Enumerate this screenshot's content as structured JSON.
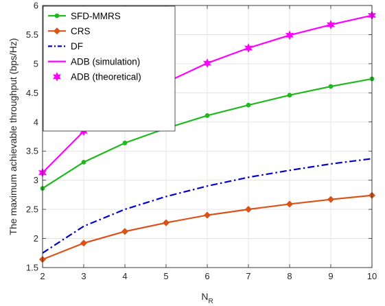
{
  "chart_data": {
    "type": "line",
    "x": [
      2,
      3,
      4,
      5,
      6,
      7,
      8,
      9,
      10
    ],
    "xlabel_main": "N",
    "xlabel_sub": "R",
    "ylabel": "The maximum achievable throughput (bps/Hz)",
    "xlim": [
      2,
      10
    ],
    "ylim": [
      1.5,
      6
    ],
    "xticks": [
      "2",
      "3",
      "4",
      "5",
      "6",
      "7",
      "8",
      "9",
      "10"
    ],
    "yticks": [
      "1.5",
      "2",
      "2.5",
      "3",
      "3.5",
      "4",
      "4.5",
      "5",
      "5.5",
      "6"
    ],
    "grid": true,
    "legend_position": "top-left",
    "series": [
      {
        "name": "SFD-MMRS",
        "color": "#1fb81f",
        "line": "solid",
        "marker": "circle",
        "values": [
          2.86,
          3.31,
          3.64,
          3.89,
          4.11,
          4.29,
          4.46,
          4.61,
          4.74
        ]
      },
      {
        "name": "CRS",
        "color": "#d95319",
        "line": "solid",
        "marker": "diamond",
        "values": [
          1.64,
          1.92,
          2.12,
          2.27,
          2.4,
          2.5,
          2.59,
          2.67,
          2.74
        ]
      },
      {
        "name": "DF",
        "color": "#0000cc",
        "line": "dashdot",
        "marker": "none",
        "values": [
          1.75,
          2.21,
          2.5,
          2.72,
          2.9,
          3.05,
          3.17,
          3.28,
          3.37
        ]
      },
      {
        "name": "ADB (simulation)",
        "color": "#ff00ff",
        "line": "solid",
        "marker": "none",
        "values": [
          3.13,
          3.84,
          4.31,
          4.68,
          5.01,
          5.27,
          5.49,
          5.67,
          5.83
        ]
      },
      {
        "name": "ADB (theoretical)",
        "color": "#ff00ff",
        "line": "none",
        "marker": "hexagram",
        "values": [
          3.13,
          3.84,
          4.31,
          4.68,
          5.01,
          5.27,
          5.49,
          5.67,
          5.83
        ]
      }
    ]
  }
}
